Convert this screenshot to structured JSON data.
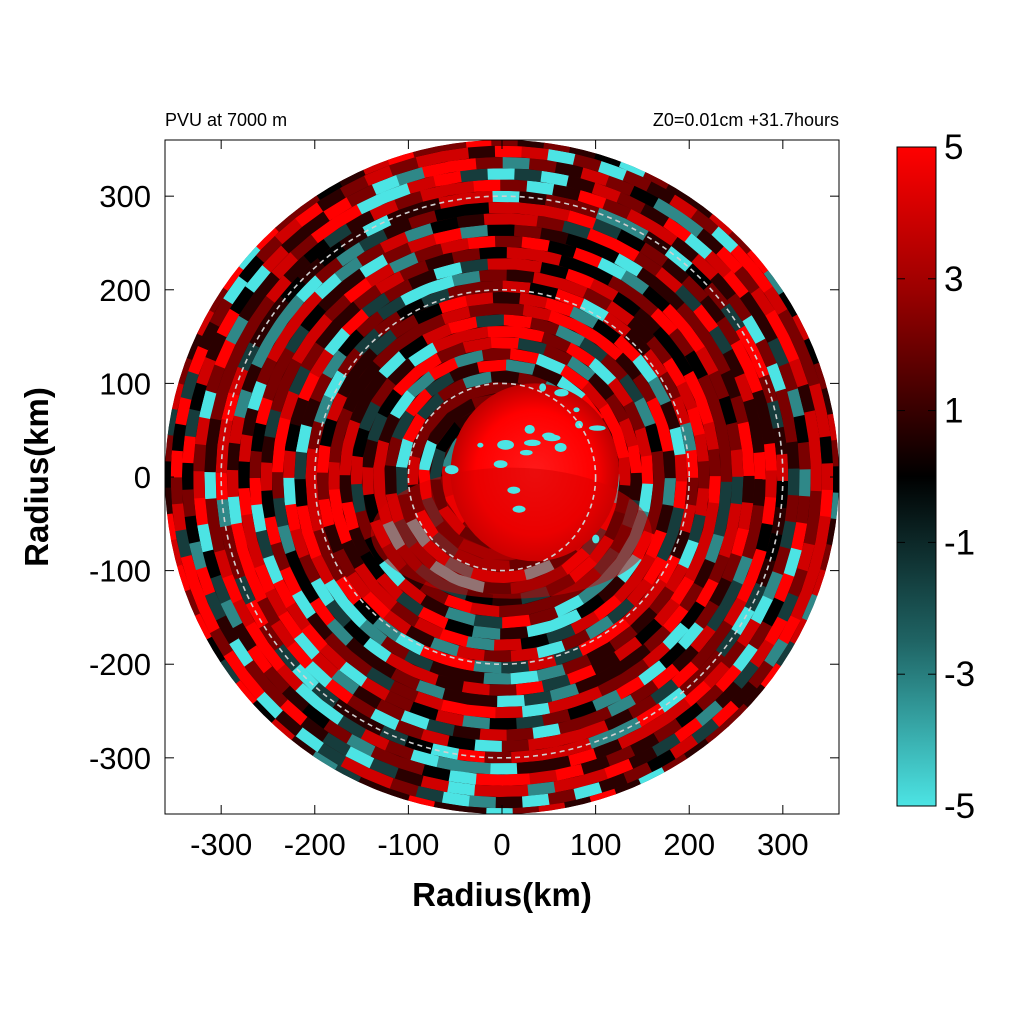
{
  "chart_data": {
    "type": "heatmap",
    "title_left": "PVU at  7000 m",
    "title_right": "Z0=0.01cm  +31.7hours",
    "xlabel": "Radius(km)",
    "ylabel": "Radius(km)",
    "xlim": [
      -360,
      360
    ],
    "ylim": [
      -360,
      360
    ],
    "domain_radius": 360,
    "x_ticks": [
      -300,
      -200,
      -100,
      0,
      100,
      200,
      300
    ],
    "x_tick_labels": [
      "-300",
      "-200",
      "-100",
      "0",
      "100",
      "200",
      "300"
    ],
    "y_ticks": [
      300,
      200,
      100,
      0,
      -100,
      -200,
      -300
    ],
    "y_tick_labels": [
      "300",
      "200",
      "100",
      "0",
      "-100",
      "-200",
      "-300"
    ],
    "range_rings_km": [
      100,
      200,
      300
    ],
    "colorbar": {
      "min": -5,
      "max": 5,
      "ticks": [
        5,
        3,
        1,
        -1,
        -3,
        -5
      ],
      "tick_labels": [
        "5",
        "3",
        "1",
        "-1",
        "-3",
        "-5"
      ],
      "colors": {
        "high": "#ff0000",
        "mid": "#000000",
        "low": "#4ce4e4"
      }
    },
    "grid": false,
    "legend": "none"
  }
}
